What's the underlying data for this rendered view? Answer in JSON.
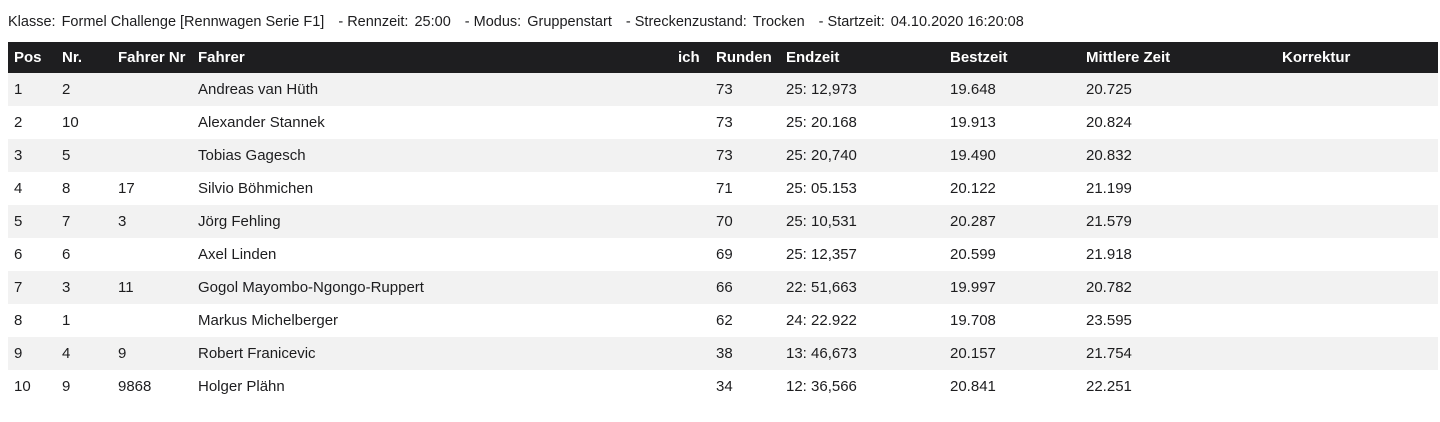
{
  "info_bar": {
    "segments": [
      {
        "label": "Klasse:",
        "value": "Formel Challenge [Rennwagen Serie F1]"
      },
      {
        "label": "- Rennzeit:",
        "value": "25:00"
      },
      {
        "label": "- Modus:",
        "value": "Gruppenstart"
      },
      {
        "label": "- Streckenzustand:",
        "value": "Trocken"
      },
      {
        "label": "- Startzeit:",
        "value": "04.10.2020 16:20:08"
      }
    ]
  },
  "table": {
    "columns": [
      "Pos",
      "Nr.",
      "Fahrer Nr",
      "Fahrer",
      "ich",
      "Runden",
      "Endzeit",
      "Bestzeit",
      "Mittlere Zeit",
      "Korrektur"
    ],
    "rows": [
      [
        "1",
        "2",
        "",
        "Andreas van Hüth",
        "",
        "73",
        "25: 12,973",
        "19.648",
        "20.725",
        ""
      ],
      [
        "2",
        "10",
        "",
        "Alexander Stannek",
        "",
        "73",
        "25: 20.168",
        "19.913",
        "20.824",
        ""
      ],
      [
        "3",
        "5",
        "",
        "Tobias Gagesch",
        "",
        "73",
        "25: 20,740",
        "19.490",
        "20.832",
        ""
      ],
      [
        "4",
        "8",
        "17",
        "Silvio Böhmichen",
        "",
        "71",
        "25: 05.153",
        "20.122",
        "21.199",
        ""
      ],
      [
        "5",
        "7",
        "3",
        "Jörg Fehling",
        "",
        "70",
        "25: 10,531",
        "20.287",
        "21.579",
        ""
      ],
      [
        "6",
        "6",
        "",
        "Axel Linden",
        "",
        "69",
        "25: 12,357",
        "20.599",
        "21.918",
        ""
      ],
      [
        "7",
        "3",
        "11",
        "Gogol Mayombo-Ngongo-Ruppert",
        "",
        "66",
        "22: 51,663",
        "19.997",
        "20.782",
        ""
      ],
      [
        "8",
        "1",
        "",
        "Markus Michelberger",
        "",
        "62",
        "24: 22.922",
        "19.708",
        "23.595",
        ""
      ],
      [
        "9",
        "4",
        "9",
        "Robert Franicevic",
        "",
        "38",
        "13: 46,673",
        "20.157",
        "21.754",
        ""
      ],
      [
        "10",
        "9",
        "9868",
        "Holger Plähn",
        "",
        "34",
        "12: 36,566",
        "20.841",
        "22.251",
        ""
      ]
    ]
  },
  "colors": {
    "header_bg": "#1e1e20",
    "header_text": "#ffffff",
    "row_alt_bg": "#f2f2f2",
    "body_text": "#1d1d1f"
  }
}
